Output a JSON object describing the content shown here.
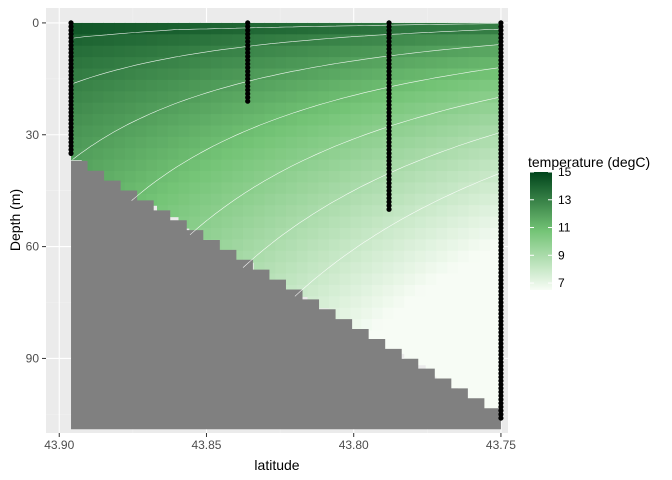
{
  "chart_data": {
    "type": "heatmap",
    "title": "",
    "xlabel": "latitude",
    "ylabel": "Depth (m)",
    "x_reversed": true,
    "y_reversed": true,
    "xlim": [
      43.7476,
      43.9045
    ],
    "ylim": [
      -4,
      110
    ],
    "x_ticks": [
      43.9,
      43.85,
      43.8,
      43.75
    ],
    "x_tick_labels": [
      "43.90",
      "43.85",
      "43.80",
      "43.75"
    ],
    "y_ticks": [
      0,
      30,
      60,
      90
    ],
    "y_tick_labels": [
      "0",
      "30",
      "60",
      "90"
    ],
    "grid": true,
    "legend": {
      "title": "temperature (degC)",
      "position": "right",
      "range": [
        6.5,
        15.0
      ],
      "ticks": [
        15,
        13,
        11,
        9,
        7
      ],
      "tick_labels": [
        "15",
        "13",
        "11",
        "9",
        "7"
      ]
    },
    "color_scale": {
      "low": "#f7fcf5",
      "mid": "#74c476",
      "high": "#00441b"
    },
    "stations": [
      {
        "latitude": 43.896,
        "max_depth": 35
      },
      {
        "latitude": 43.836,
        "max_depth": 21
      },
      {
        "latitude": 43.788,
        "max_depth": 50
      },
      {
        "latitude": 43.75,
        "max_depth": 106
      }
    ],
    "bottom_profile": [
      {
        "latitude": 43.896,
        "depth": 37
      },
      {
        "latitude": 43.75,
        "depth": 106
      }
    ],
    "contour_levels": [
      8,
      9,
      10,
      11,
      12,
      13,
      14
    ],
    "colors": {
      "panel_background": "#ebebeb",
      "grid_major": "#ffffff",
      "seafloor": "#808080",
      "station_points": "#000000",
      "contour": "#ffffff"
    }
  }
}
